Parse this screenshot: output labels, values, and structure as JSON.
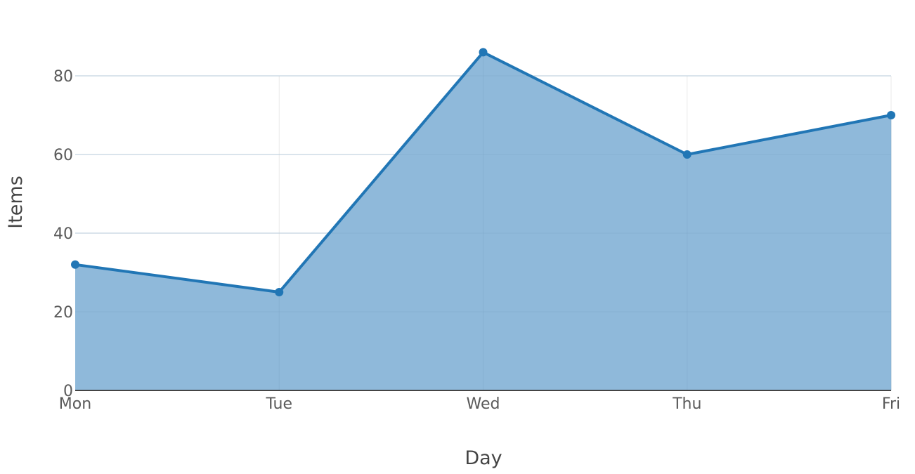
{
  "colors": {
    "line": "#2176b5",
    "fill": "#8fb9da",
    "grid": "#e9e9e9",
    "text": "#5a5a5a"
  },
  "chart_data": {
    "type": "area",
    "categories": [
      "Mon",
      "Tue",
      "Wed",
      "Thu",
      "Fri"
    ],
    "series": [
      {
        "values": [
          32,
          25,
          86,
          60,
          70
        ]
      }
    ],
    "xlabel": "Day",
    "ylabel": "Items",
    "ylim": [
      0,
      90
    ],
    "yticks": [
      0,
      20,
      40,
      60,
      80
    ],
    "grid": true,
    "markers": true,
    "legend": "none"
  }
}
